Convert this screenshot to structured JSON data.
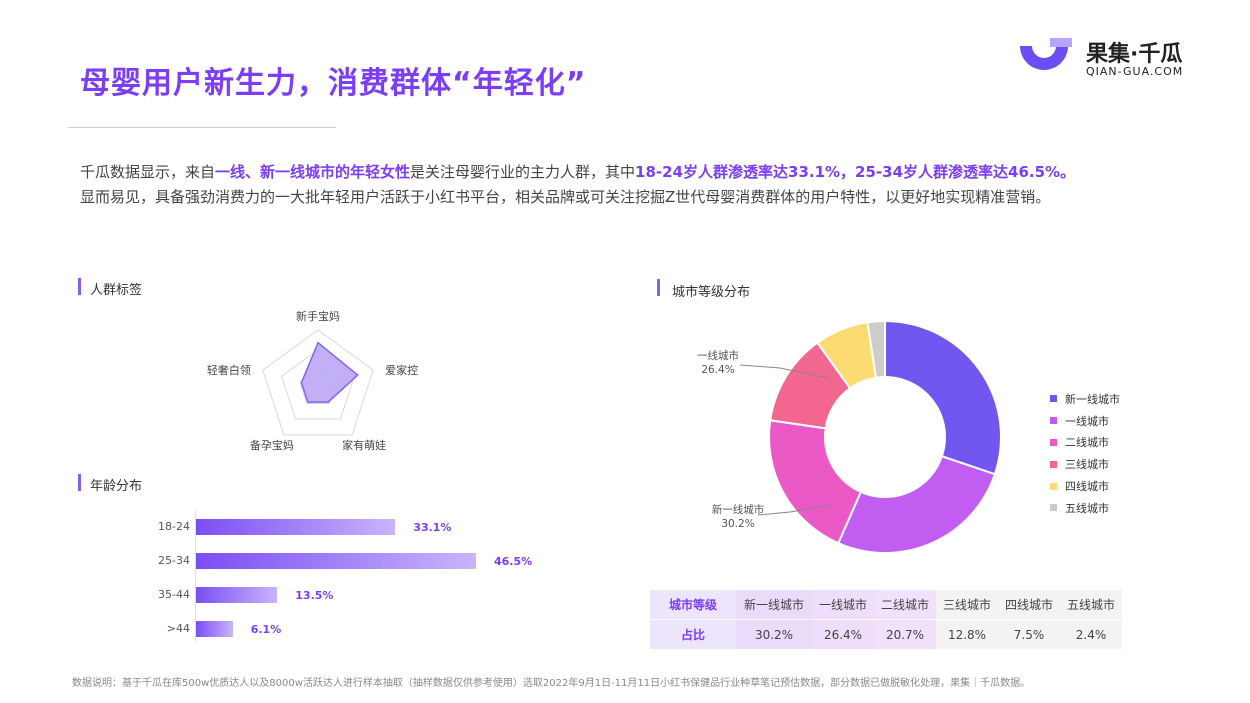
{
  "header": {
    "title": "母婴用户新生力，消费群体“年轻化”",
    "logo_name": "果集·千瓜",
    "logo_domain": "QIAN-GUA.COM"
  },
  "intro": {
    "p1": "千瓜数据显示，来自",
    "p2": "一线、新一线城市的年轻女性",
    "p3": "是关注母婴行业的主力人群，其中",
    "p4": "18-24岁人群渗透率达33.1%，25-34岁人群渗透率达46.5%。",
    "p5": "显而易见，具备强劲消费力的一大批年轻用户活跃于小红书平台，相关品牌或可关注挖掘Z世代母婴消费群体的用户特性，以更好地实现精准营销。"
  },
  "sections": {
    "persona": "人群标签",
    "age": "年龄分布",
    "city": "城市等级分布"
  },
  "colors": {
    "brand": "#7b3df5",
    "radar_fill": "#b7a2f4",
    "bar_start": "#7b4ef3",
    "bar_end": "#c9b4fb"
  },
  "chart_data": [
    {
      "type": "radar",
      "title": "人群标签",
      "categories": [
        "新手宝妈",
        "爱家控",
        "家有萌娃",
        "备孕宝妈",
        "轻奢白领"
      ],
      "values": [
        0.78,
        0.72,
        0.3,
        0.3,
        0.3
      ],
      "range": [
        0,
        1
      ]
    },
    {
      "type": "bar",
      "orientation": "horizontal",
      "title": "年龄分布",
      "categories": [
        "18-24",
        "25-34",
        "35-44",
        ">44"
      ],
      "values": [
        33.1,
        46.5,
        13.5,
        6.1
      ],
      "value_labels": [
        "33.1%",
        "46.5%",
        "13.5%",
        "6.1%"
      ],
      "unit": "%"
    },
    {
      "type": "pie",
      "variant": "donut",
      "title": "城市等级分布",
      "categories": [
        "新一线城市",
        "一线城市",
        "二线城市",
        "三线城市",
        "四线城市",
        "五线城市"
      ],
      "values": [
        30.2,
        26.4,
        20.7,
        12.8,
        7.5,
        2.4
      ],
      "colors": [
        "#7157ef",
        "#c15ef1",
        "#ea59c6",
        "#f26690",
        "#fcdc72",
        "#cccccc"
      ],
      "annotations": [
        {
          "label": "一线城市",
          "value": "26.4%"
        },
        {
          "label": "新一线城市",
          "value": "30.2%"
        }
      ],
      "legend": "right"
    }
  ],
  "table": {
    "row1_label": "城市等级",
    "row2_label": "占比",
    "columns": [
      {
        "name": "新一线城市",
        "value": "30.2%",
        "bg": "#e9dcfb"
      },
      {
        "name": "一线城市",
        "value": "26.4%",
        "bg": "#eedefb"
      },
      {
        "name": "二线城市",
        "value": "20.7%",
        "bg": "#f1e1fa"
      },
      {
        "name": "三线城市",
        "value": "12.8%",
        "bg": "#f3f3f3"
      },
      {
        "name": "四线城市",
        "value": "7.5%",
        "bg": "#f3f3f3"
      },
      {
        "name": "五线城市",
        "value": "2.4%",
        "bg": "#f3f3f3"
      }
    ]
  },
  "footnote": "数据说明：基于千瓜在库500w优质达人以及8000w活跃达人进行样本抽取（抽样数据仅供参考使用）选取2022年9月1日-11月11日小红书保健品行业种草笔记预估数据，部分数据已做脱敏化处理，果集｜千瓜数据。"
}
